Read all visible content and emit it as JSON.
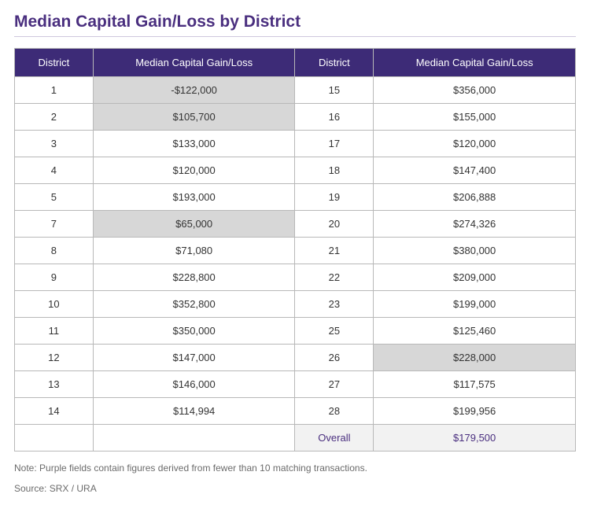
{
  "title": "Median Capital Gain/Loss by District",
  "columns": {
    "district": "District",
    "value": "Median Capital Gain/Loss"
  },
  "left_rows": [
    {
      "district": "1",
      "value": "-$122,000",
      "highlight": true
    },
    {
      "district": "2",
      "value": "$105,700",
      "highlight": true
    },
    {
      "district": "3",
      "value": "$133,000",
      "highlight": false
    },
    {
      "district": "4",
      "value": "$120,000",
      "highlight": false
    },
    {
      "district": "5",
      "value": "$193,000",
      "highlight": false
    },
    {
      "district": "7",
      "value": "$65,000",
      "highlight": true
    },
    {
      "district": "8",
      "value": "$71,080",
      "highlight": false
    },
    {
      "district": "9",
      "value": "$228,800",
      "highlight": false
    },
    {
      "district": "10",
      "value": "$352,800",
      "highlight": false
    },
    {
      "district": "11",
      "value": "$350,000",
      "highlight": false
    },
    {
      "district": "12",
      "value": "$147,000",
      "highlight": false
    },
    {
      "district": "13",
      "value": "$146,000",
      "highlight": false
    },
    {
      "district": "14",
      "value": "$114,994",
      "highlight": false
    }
  ],
  "right_rows": [
    {
      "district": "15",
      "value": "$356,000",
      "highlight": false
    },
    {
      "district": "16",
      "value": "$155,000",
      "highlight": false
    },
    {
      "district": "17",
      "value": "$120,000",
      "highlight": false
    },
    {
      "district": "18",
      "value": "$147,400",
      "highlight": false
    },
    {
      "district": "19",
      "value": "$206,888",
      "highlight": false
    },
    {
      "district": "20",
      "value": "$274,326",
      "highlight": false
    },
    {
      "district": "21",
      "value": "$380,000",
      "highlight": false
    },
    {
      "district": "22",
      "value": "$209,000",
      "highlight": false
    },
    {
      "district": "23",
      "value": "$199,000",
      "highlight": false
    },
    {
      "district": "25",
      "value": "$125,460",
      "highlight": false
    },
    {
      "district": "26",
      "value": "$228,000",
      "highlight": true
    },
    {
      "district": "27",
      "value": "$117,575",
      "highlight": false
    },
    {
      "district": "28",
      "value": "$199,956",
      "highlight": false
    }
  ],
  "overall": {
    "label": "Overall",
    "value": "$179,500"
  },
  "note": "Note: Purple fields contain figures derived from fewer than 10 matching transactions.",
  "source": "Source: SRX / URA",
  "colors": {
    "title": "#4a2f7f",
    "header_bg": "#3d2b77",
    "header_text": "#ffffff",
    "border": "#b8b8b8",
    "highlight_bg": "#d7d7d7",
    "overall_bg": "#f2f2f2",
    "overall_text": "#4a2f7f",
    "note_text": "#6b6b6b"
  }
}
